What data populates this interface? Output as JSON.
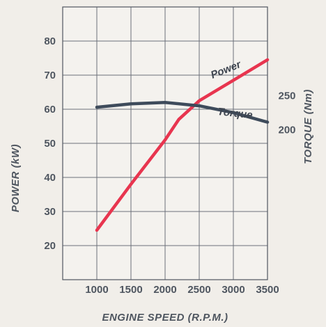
{
  "chart_data": {
    "type": "line",
    "xlabel": "ENGINE SPEED (R.P.M.)",
    "ylabel_left": "POWER (kW)",
    "ylabel_right": "TORQUE (Nm)",
    "x_ticks": [
      "1000",
      "1500",
      "2000",
      "2500",
      "3000",
      "3500"
    ],
    "x_range": [
      500,
      3500
    ],
    "y_left_ticks": [
      "20",
      "30",
      "40",
      "50",
      "60",
      "70",
      "80"
    ],
    "y_left_range": [
      10,
      90
    ],
    "y_right_ticks": [
      "200",
      "250"
    ],
    "y_right_range": [
      -20,
      380
    ],
    "grid": true,
    "series": [
      {
        "name": "Power",
        "axis": "left",
        "color": "#e8354f",
        "x": [
          1000,
          1500,
          2000,
          2200,
          2500,
          3000,
          3500
        ],
        "y": [
          24.5,
          38,
          51,
          57,
          62.5,
          68.5,
          74.5
        ]
      },
      {
        "name": "Torque",
        "axis": "right",
        "color": "#3e4b5b",
        "x": [
          1000,
          1500,
          2000,
          2500,
          3000,
          3500
        ],
        "y": [
          233,
          238,
          240,
          235,
          225,
          211
        ]
      }
    ]
  }
}
